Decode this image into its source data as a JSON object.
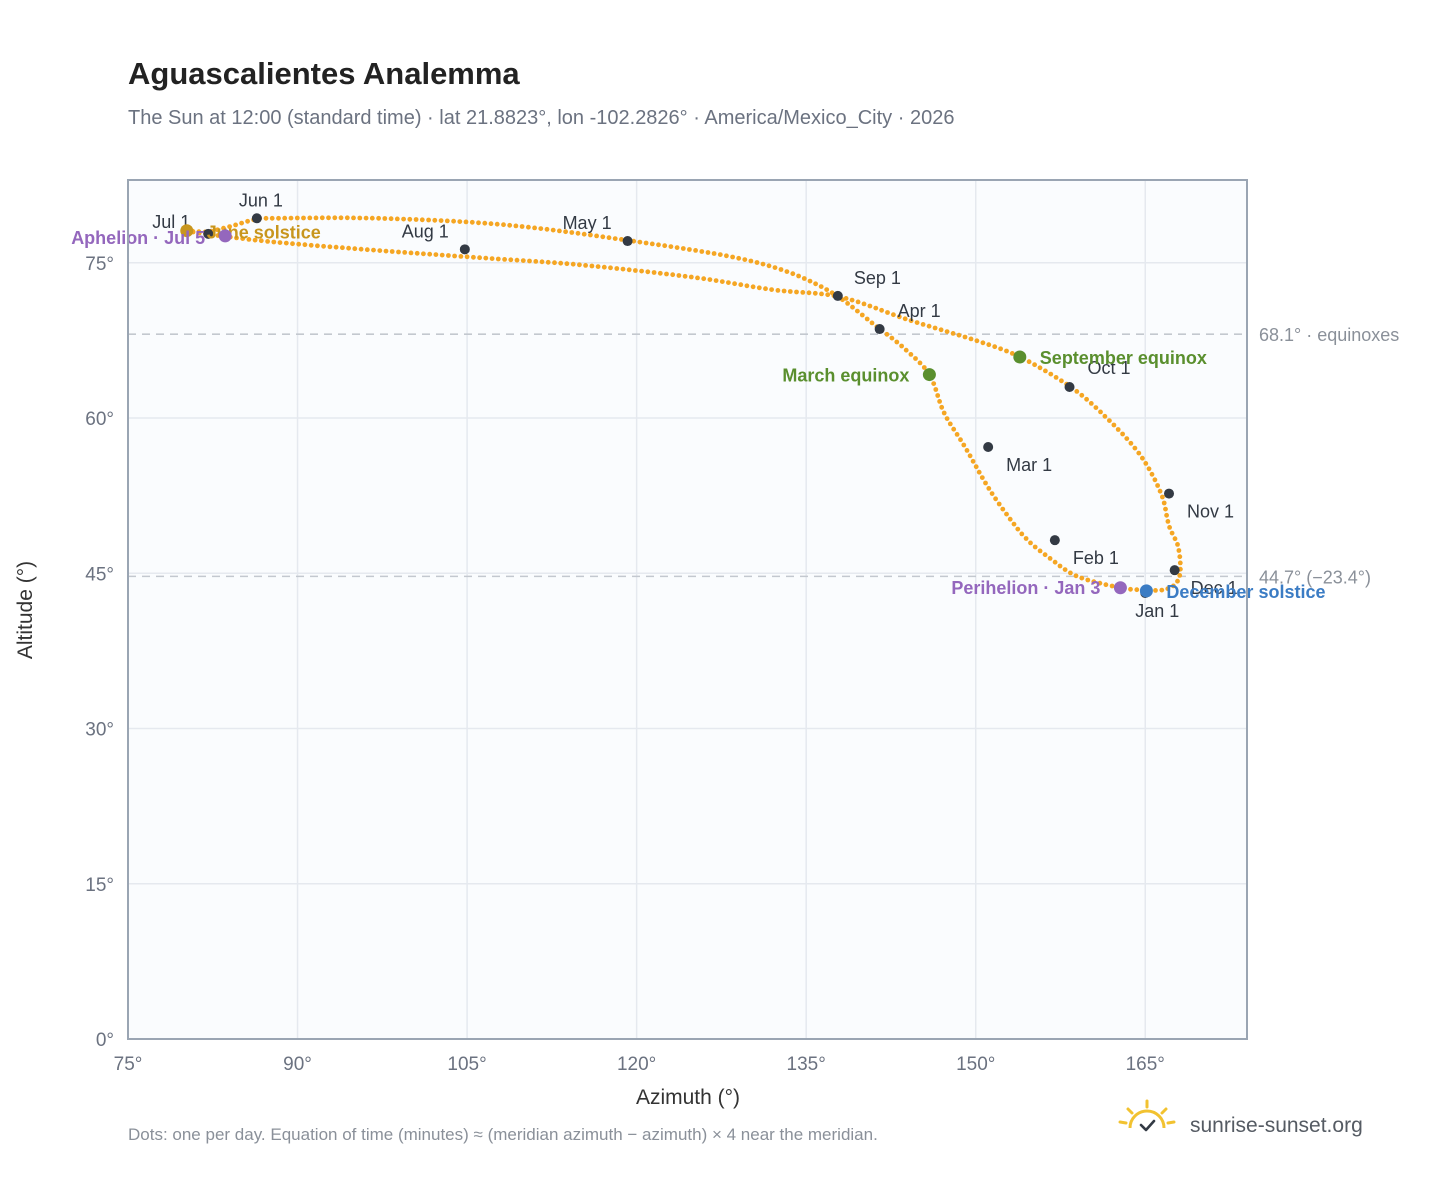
{
  "header": {
    "title": "Aguascalientes Analemma",
    "subtitle": "The Sun at 12:00 (standard time) · lat 21.8823°, lon -102.2826° · America/Mexico_City · 2026"
  },
  "footer": {
    "note": "Dots: one per day. Equation of time (minutes) ≈ (meridian azimuth − azimuth) × 4 near the meridian.",
    "brand": "sunrise-sunset.org"
  },
  "colors": {
    "path": "#f5a623",
    "month_dot": "#333a44",
    "equinox": "#5a8f2e",
    "solstice_june": "#c8961e",
    "solstice_december": "#3b7cc4",
    "apsis": "#9467bd",
    "grid": "#e5e9ef",
    "plot_bg": "#fafcfe",
    "frame": "#9aa5b3",
    "reference": "#c3c8cf"
  },
  "chart_data": {
    "type": "scatter",
    "xlabel": "Azimuth (°)",
    "ylabel": "Altitude (°)",
    "xlim": [
      75,
      174
    ],
    "ylim": [
      0,
      83
    ],
    "x_ticks": [
      75,
      90,
      105,
      120,
      135,
      150,
      165
    ],
    "y_ticks": [
      0,
      15,
      30,
      45,
      60,
      75
    ],
    "x_tick_labels": [
      "75°",
      "90°",
      "105°",
      "120°",
      "135°",
      "150°",
      "165°"
    ],
    "y_tick_labels": [
      "0°",
      "15°",
      "30°",
      "45°",
      "60°",
      "75°"
    ],
    "grid": true,
    "series": [
      {
        "x": [
          164.8,
          162.8,
          159.0,
          156.5,
          154.6,
          153.0,
          151.1,
          149.0,
          147.2,
          145.9,
          143.7,
          141.4,
          136.5,
          130.0,
          119.0,
          108.0,
          97.0,
          88.0,
          86.3,
          84.0,
          82.0,
          80.2,
          82.5,
          88.0,
          97.0,
          106.0,
          115.0,
          125.0,
          132.0,
          138.0,
          144.0,
          150.0,
          153.9,
          158.4,
          161.5,
          164.5,
          166.4,
          167.1,
          167.9,
          168.1,
          167.7,
          166.6,
          164.8
        ],
        "y": [
          43.4,
          43.6,
          44.7,
          46.5,
          48.2,
          50.3,
          53.3,
          57.3,
          60.5,
          64.2,
          66.7,
          68.7,
          72.6,
          75.2,
          77.2,
          78.7,
          79.3,
          79.3,
          79.2,
          78.5,
          78.0,
          78.1,
          77.7,
          77.0,
          76.2,
          75.5,
          74.8,
          73.6,
          72.4,
          71.7,
          69.5,
          67.5,
          65.9,
          63.0,
          60.1,
          56.5,
          52.7,
          49.6,
          47.6,
          45.3,
          44.0,
          43.4,
          43.4
        ]
      }
    ],
    "month_markers": [
      {
        "label": "Jan 1",
        "x": 165.0,
        "y": 43.1
      },
      {
        "label": "Feb 1",
        "x": 157.0,
        "y": 48.2
      },
      {
        "label": "Mar 1",
        "x": 151.1,
        "y": 57.2
      },
      {
        "label": "Apr 1",
        "x": 141.5,
        "y": 68.6
      },
      {
        "label": "May 1",
        "x": 119.2,
        "y": 77.1
      },
      {
        "label": "Jun 1",
        "x": 86.4,
        "y": 79.3
      },
      {
        "label": "Jul 1",
        "x": 82.1,
        "y": 77.8
      },
      {
        "label": "Aug 1",
        "x": 104.8,
        "y": 76.3
      },
      {
        "label": "Sep 1",
        "x": 137.8,
        "y": 71.8
      },
      {
        "label": "Oct 1",
        "x": 158.3,
        "y": 63.0
      },
      {
        "label": "Nov 1",
        "x": 167.1,
        "y": 52.7
      },
      {
        "label": "Dec 1",
        "x": 167.6,
        "y": 45.3
      }
    ],
    "events": [
      {
        "label": "March equinox",
        "x": 145.9,
        "y": 64.2,
        "kind": "equinox"
      },
      {
        "label": "September equinox",
        "x": 153.9,
        "y": 65.9,
        "kind": "equinox"
      },
      {
        "label": "June solstice",
        "x": 80.2,
        "y": 78.1,
        "kind": "solstice_june"
      },
      {
        "label": "December solstice",
        "x": 165.1,
        "y": 43.3,
        "kind": "solstice_december"
      },
      {
        "label": "Aphelion · Jul 5",
        "x": 83.6,
        "y": 77.6,
        "kind": "apsis"
      },
      {
        "label": "Perihelion · Jan 3",
        "x": 162.8,
        "y": 43.6,
        "kind": "apsis"
      }
    ],
    "reference_lines": [
      {
        "y": 68.1,
        "label": "68.1° · equinoxes"
      },
      {
        "y": 44.7,
        "label": "44.7° (−23.4°)"
      }
    ]
  }
}
